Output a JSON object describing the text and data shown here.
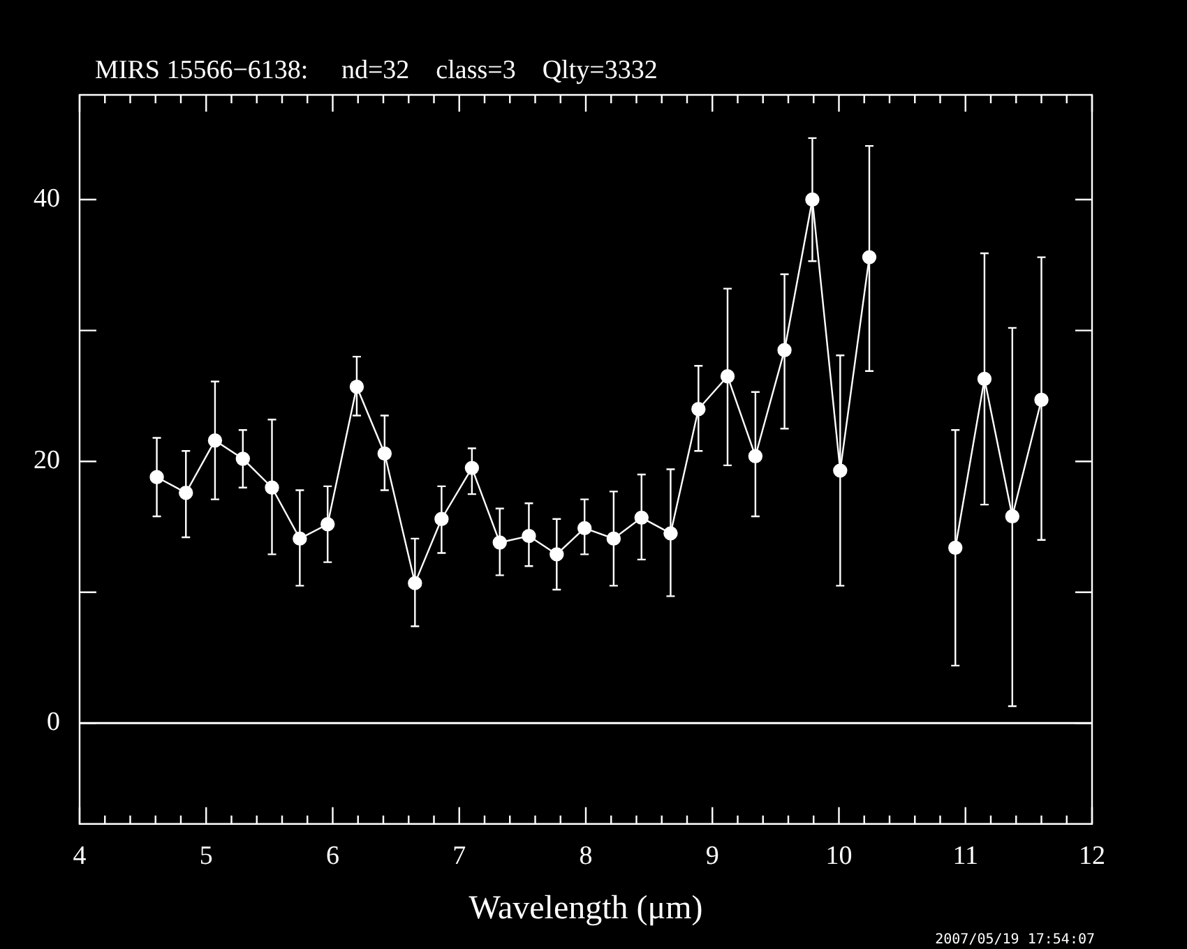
{
  "chart_data": {
    "type": "line",
    "title": "MIRS 15566−6138:     nd=32    class=3    Qlty=3332",
    "xlabel": "Wavelength (μm)",
    "x": [
      4.61,
      4.84,
      5.07,
      5.29,
      5.52,
      5.74,
      5.96,
      6.19,
      6.41,
      6.65,
      6.86,
      7.1,
      7.32,
      7.55,
      7.77,
      7.99,
      8.22,
      8.44,
      8.67,
      8.89,
      9.12,
      9.34,
      9.57,
      9.79,
      10.01,
      10.24,
      10.46,
      10.69,
      10.92,
      11.15,
      11.37,
      11.6
    ],
    "series": [
      {
        "color": "#ffffff",
        "values": [
          18.8,
          17.6,
          21.6,
          20.2,
          18.0,
          14.1,
          15.2,
          25.7,
          20.6,
          10.7,
          15.6,
          19.5,
          13.8,
          14.3,
          12.9,
          14.9,
          14.1,
          15.7,
          14.5,
          24.0,
          26.5,
          20.4,
          28.5,
          40.0,
          19.3,
          35.6,
          null,
          null,
          13.4,
          26.3,
          15.8,
          24.7
        ],
        "errors": [
          [
            15.8,
            21.8
          ],
          [
            14.2,
            20.8
          ],
          [
            17.1,
            26.1
          ],
          [
            18.0,
            22.4
          ],
          [
            12.9,
            23.2
          ],
          [
            10.5,
            17.8
          ],
          [
            12.3,
            18.1
          ],
          [
            23.5,
            28.0
          ],
          [
            17.8,
            23.5
          ],
          [
            7.4,
            14.1
          ],
          [
            13.0,
            18.1
          ],
          [
            17.5,
            21.0
          ],
          [
            11.3,
            16.4
          ],
          [
            12.0,
            16.8
          ],
          [
            10.2,
            15.6
          ],
          [
            12.9,
            17.1
          ],
          [
            10.5,
            17.7
          ],
          [
            12.5,
            19.0
          ],
          [
            9.7,
            19.4
          ],
          [
            20.8,
            27.3
          ],
          [
            19.7,
            33.2
          ],
          [
            15.8,
            25.3
          ],
          [
            22.5,
            34.3
          ],
          [
            35.3,
            44.7
          ],
          [
            10.5,
            28.1
          ],
          [
            26.9,
            44.1
          ],
          null,
          null,
          [
            4.4,
            22.4
          ],
          [
            16.7,
            35.9
          ],
          [
            1.3,
            30.2
          ],
          [
            14.0,
            35.6
          ]
        ]
      }
    ],
    "xlim": [
      4,
      12
    ],
    "ylim": [
      -7.7,
      48
    ],
    "xticks": [
      4,
      {
        "value": 4.2,
        "label": null
      },
      {
        "value": 4.4,
        "label": null
      },
      {
        "value": 4.6,
        "label": null
      },
      {
        "value": 4.8,
        "label": null
      },
      5,
      {
        "value": 5.2,
        "label": null
      },
      {
        "value": 5.4,
        "label": null
      },
      {
        "value": 5.6,
        "label": null
      },
      {
        "value": 5.8,
        "label": null
      },
      6,
      {
        "value": 6.2,
        "label": null
      },
      {
        "value": 6.4,
        "label": null
      },
      {
        "value": 6.6,
        "label": null
      },
      {
        "value": 6.8,
        "label": null
      },
      7,
      {
        "value": 7.2,
        "label": null
      },
      {
        "value": 7.4,
        "label": null
      },
      {
        "value": 7.6,
        "label": null
      },
      {
        "value": 7.8,
        "label": null
      },
      8,
      {
        "value": 8.2,
        "label": null
      },
      {
        "value": 8.4,
        "label": null
      },
      {
        "value": 8.6,
        "label": null
      },
      {
        "value": 8.8,
        "label": null
      },
      9,
      {
        "value": 9.2,
        "label": null
      },
      {
        "value": 9.4,
        "label": null
      },
      {
        "value": 9.6,
        "label": null
      },
      {
        "value": 9.8,
        "label": null
      },
      10,
      {
        "value": 10.2,
        "label": null
      },
      {
        "value": 10.4,
        "label": null
      },
      {
        "value": 10.6,
        "label": null
      },
      {
        "value": 10.8,
        "label": null
      },
      11,
      {
        "value": 11.2,
        "label": null
      },
      {
        "value": 11.4,
        "label": null
      },
      {
        "value": 11.6,
        "label": null
      },
      {
        "value": 11.8,
        "label": null
      },
      12
    ],
    "yticks": [
      0,
      {
        "value": 10,
        "label": null
      },
      20,
      {
        "value": 30,
        "label": null
      },
      40
    ],
    "ref_lines": [
      {
        "axis": "y",
        "value": 0,
        "label": null
      }
    ],
    "annotations": [
      "2007/05/19 17:54:07"
    ],
    "marker": "circle",
    "line_style": "solid",
    "grid": false,
    "legend": false
  }
}
